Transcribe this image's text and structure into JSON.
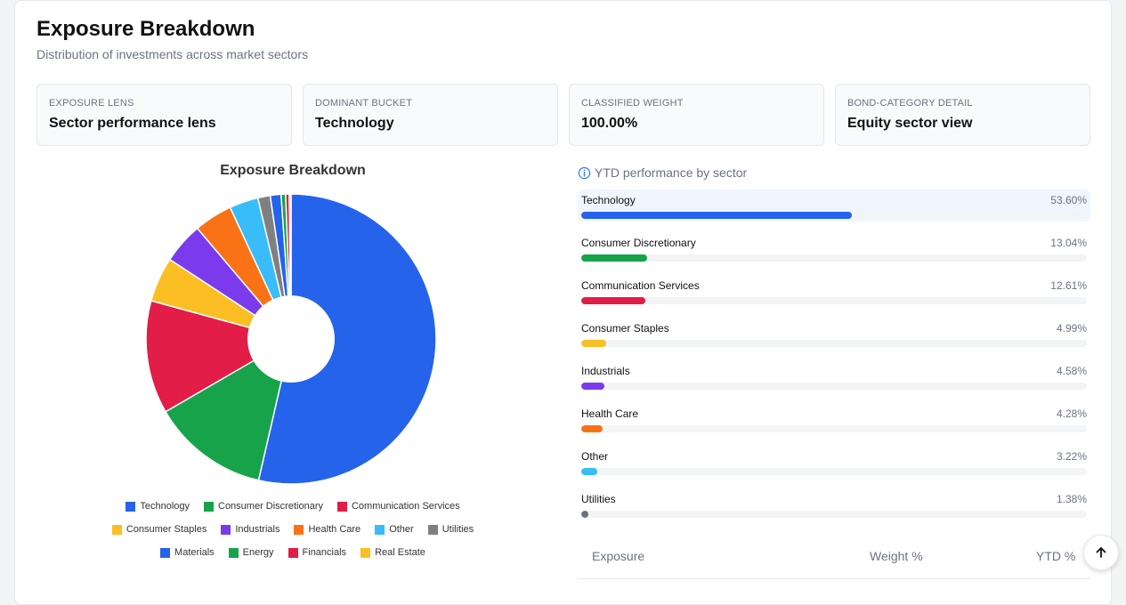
{
  "header": {
    "title": "Exposure Breakdown",
    "subtitle": "Distribution of investments across market sectors"
  },
  "stats": [
    {
      "label": "EXPOSURE LENS",
      "value": "Sector performance lens"
    },
    {
      "label": "DOMINANT BUCKET",
      "value": "Technology"
    },
    {
      "label": "CLASSIFIED WEIGHT",
      "value": "100.00%"
    },
    {
      "label": "BOND-CATEGORY DETAIL",
      "value": "Equity sector view"
    }
  ],
  "performance": {
    "header": "YTD performance by sector",
    "icon": "info-icon",
    "items": [
      {
        "name": "Technology",
        "pct_label": "53.60%",
        "value": 53.6,
        "color": "#2563eb"
      },
      {
        "name": "Consumer Discretionary",
        "pct_label": "13.04%",
        "value": 13.04,
        "color": "#16a34a"
      },
      {
        "name": "Communication Services",
        "pct_label": "12.61%",
        "value": 12.61,
        "color": "#e11d48"
      },
      {
        "name": "Consumer Staples",
        "pct_label": "4.99%",
        "value": 4.99,
        "color": "#fbbf24"
      },
      {
        "name": "Industrials",
        "pct_label": "4.58%",
        "value": 4.58,
        "color": "#7c3aed"
      },
      {
        "name": "Health Care",
        "pct_label": "4.28%",
        "value": 4.28,
        "color": "#f97316"
      },
      {
        "name": "Other",
        "pct_label": "3.22%",
        "value": 3.22,
        "color": "#38bdf8"
      },
      {
        "name": "Utilities",
        "pct_label": "1.38%",
        "value": 1.38,
        "color": "#6b7280"
      }
    ]
  },
  "table": {
    "columns": [
      "Exposure",
      "Weight %",
      "YTD %"
    ]
  },
  "chart_data": {
    "type": "pie",
    "title": "Exposure Breakdown",
    "donut": true,
    "legend_position": "bottom",
    "categories": [
      "Technology",
      "Consumer Discretionary",
      "Communication Services",
      "Consumer Staples",
      "Industrials",
      "Health Care",
      "Other",
      "Utilities",
      "Materials",
      "Energy",
      "Financials",
      "Real Estate"
    ],
    "values": [
      53.6,
      13.04,
      12.61,
      4.99,
      4.58,
      4.28,
      3.22,
      1.38,
      1.2,
      0.5,
      0.4,
      0.2
    ],
    "colors": [
      "#2563eb",
      "#16a34a",
      "#e11d48",
      "#fbbf24",
      "#7c3aed",
      "#f97316",
      "#38bdf8",
      "#808080",
      "#2563eb",
      "#16a34a",
      "#e11d48",
      "#fbbf24"
    ]
  }
}
